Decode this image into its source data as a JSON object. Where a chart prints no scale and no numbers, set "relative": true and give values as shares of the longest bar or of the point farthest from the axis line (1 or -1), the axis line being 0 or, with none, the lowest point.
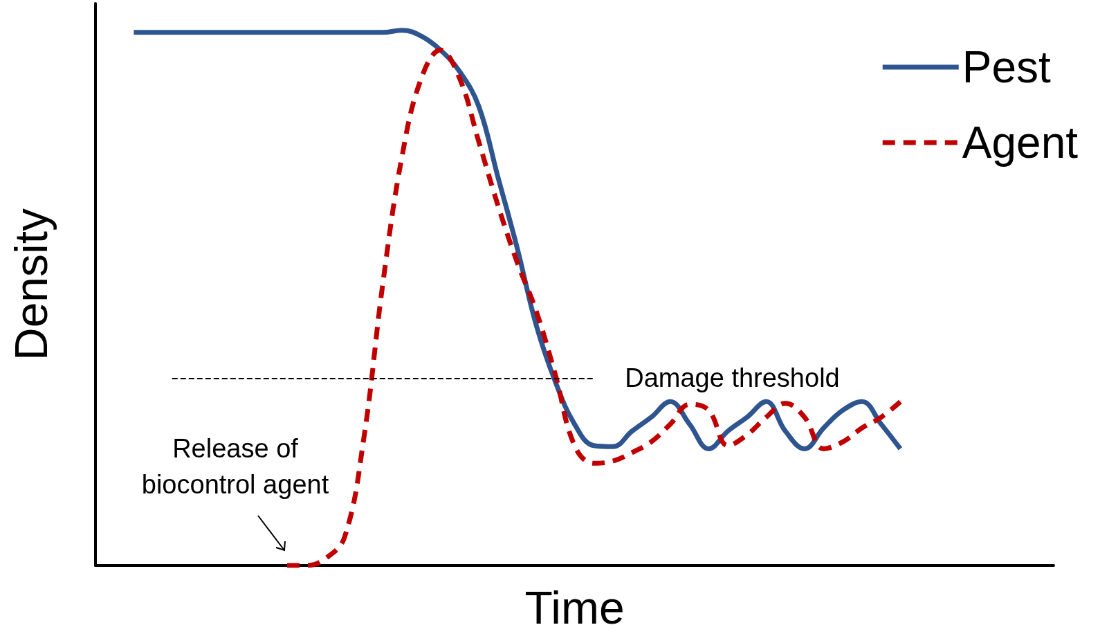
{
  "chart_data": {
    "type": "line",
    "relative": true,
    "xlabel": "Time",
    "ylabel": "Density",
    "marker": "none",
    "legend": "top right",
    "grid": false,
    "categories": [
      null,
      null,
      null,
      null,
      null,
      null,
      null,
      null,
      null,
      null,
      null,
      null,
      null,
      null,
      null,
      null,
      null,
      null,
      null,
      null,
      null,
      null,
      null,
      null,
      null,
      null,
      null,
      null,
      null,
      null,
      null,
      null,
      null,
      null,
      null,
      null,
      null,
      null,
      null,
      null,
      null,
      null,
      null,
      null,
      null,
      null,
      null,
      null,
      null,
      null,
      null
    ],
    "series": [
      {
        "name": "Pest",
        "color": "#2e5590",
        "line_style": "solid",
        "values": [
          null,
          null,
          0.996,
          0.996,
          0.996,
          0.996,
          0.996,
          0.996,
          0.996,
          0.996,
          0.996,
          0.996,
          0.996,
          0.996,
          0.996,
          0.996,
          1.0,
          0.989,
          0.963,
          0.923,
          0.858,
          0.726,
          0.594,
          0.449,
          0.343,
          0.264,
          0.224,
          0.222,
          0.251,
          0.277,
          0.306,
          0.264,
          0.218,
          0.251,
          0.277,
          0.306,
          0.251,
          0.218,
          0.257,
          0.29,
          0.306,
          0.264,
          0.218,
          null,
          null,
          null,
          null,
          null,
          null,
          null,
          null
        ]
      },
      {
        "name": "Agent",
        "color": "#c00000",
        "line_style": "dashed",
        "values": [
          null,
          null,
          null,
          null,
          null,
          null,
          null,
          null,
          null,
          null,
          0,
          0,
          0.013,
          0.053,
          0.237,
          0.528,
          0.765,
          0.91,
          0.963,
          0.91,
          0.792,
          0.673,
          0.567,
          0.475,
          0.356,
          0.224,
          0.191,
          0.195,
          0.211,
          0.231,
          0.264,
          0.301,
          0.29,
          0.224,
          0.244,
          0.277,
          0.303,
          0.277,
          0.218,
          0.231,
          0.257,
          0.277,
          0.306,
          null,
          null,
          null,
          null,
          null,
          null,
          null,
          null
        ]
      }
    ],
    "ref_lines": [
      {
        "axis": "y",
        "value": 0.35,
        "label": "Damage threshold",
        "color": "#000000",
        "line_style": "dashed"
      }
    ],
    "annotations": [
      "Release of\nbiocontrol agent"
    ]
  }
}
